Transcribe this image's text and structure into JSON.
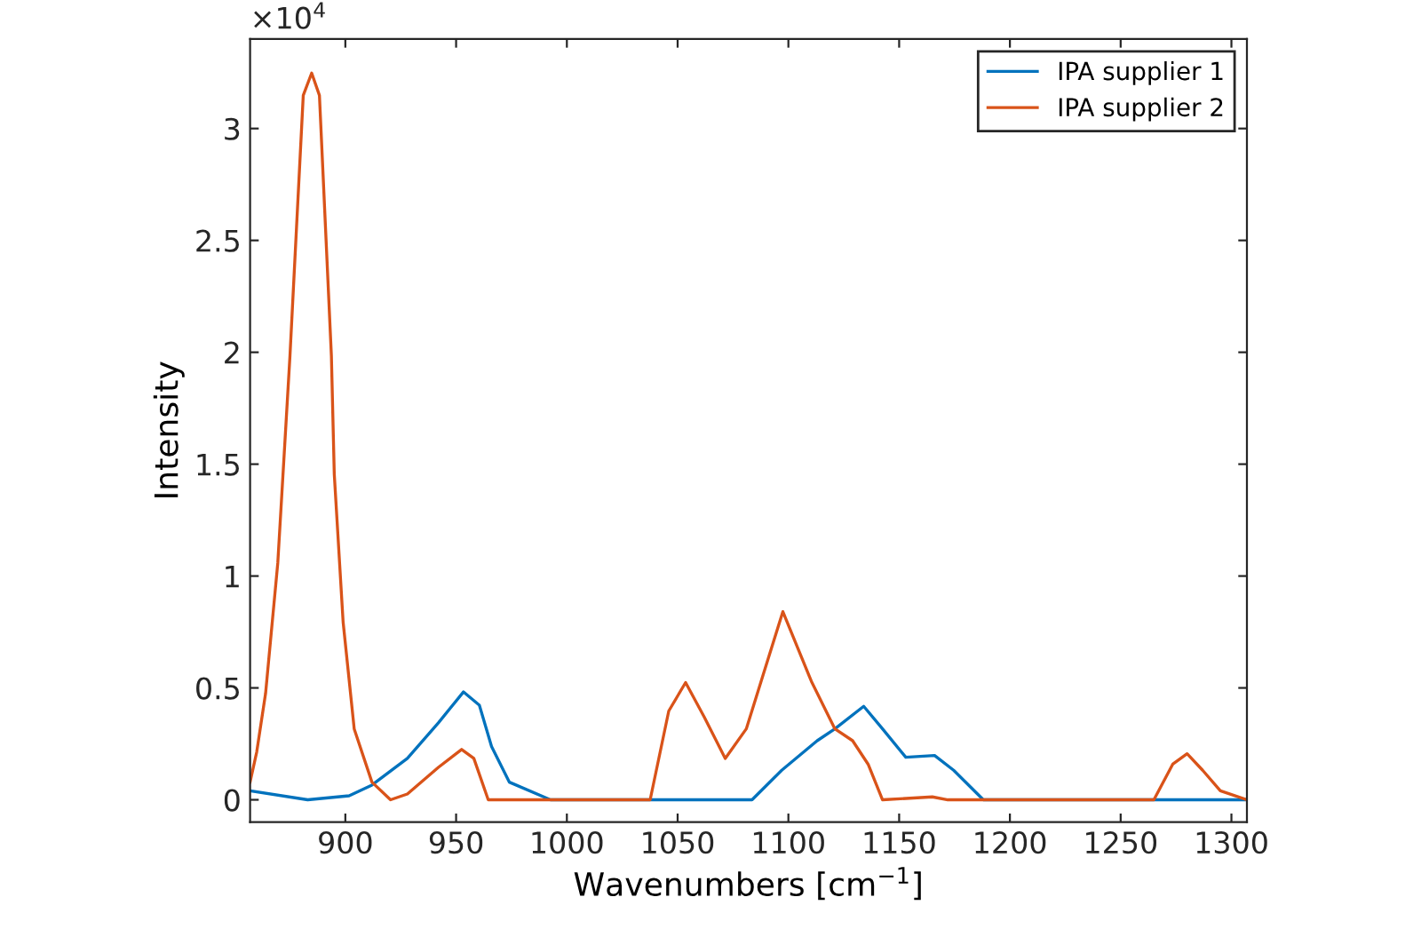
{
  "chart_data": {
    "type": "line",
    "xlabel": "Wavenumbers [cm$^{−1}$]",
    "ylabel": "Intensity",
    "annotations": [
      "×10$^{4}$"
    ],
    "xlim": [
      857,
      1307
    ],
    "ylim": [
      -0.1,
      3.4
    ],
    "xticks": [
      900,
      950,
      1000,
      1050,
      1100,
      1150,
      1200,
      1250,
      1300
    ],
    "yticks": [
      0,
      0.5,
      1,
      1.5,
      2,
      2.5,
      3
    ],
    "grid": false,
    "legend": "top right",
    "line_style": "solid",
    "marker": "none",
    "series": [
      {
        "name": "IPA supplier 1",
        "color": "#0072bd",
        "x": [
          857,
          883,
          901.7,
          912,
          928,
          942,
          953.3,
          960.5,
          966,
          974,
          992.6,
          1083.6,
          1097,
          1113,
          1121,
          1134,
          1142.5,
          1153,
          1166,
          1174.6,
          1188,
          1307
        ],
        "values": [
          0.04,
          0,
          0.018,
          0.066,
          0.185,
          0.344,
          0.482,
          0.423,
          0.238,
          0.079,
          0,
          0,
          0.132,
          0.264,
          0.317,
          0.418,
          0.317,
          0.19,
          0.198,
          0.132,
          0,
          0
        ]
      },
      {
        "name": "IPA supplier 2",
        "color": "#d95319",
        "x": [
          857,
          860,
          864,
          869.5,
          875,
          881,
          884.8,
          888.3,
          893.7,
          895,
          899,
          904,
          912,
          920.4,
          928,
          942,
          952.5,
          958,
          964.5,
          1037.6,
          1046,
          1053.6,
          1062,
          1071.5,
          1081,
          1097.5,
          1110.4,
          1121,
          1129,
          1136,
          1142.5,
          1165,
          1172,
          1265,
          1273.5,
          1280,
          1287,
          1295,
          1307
        ],
        "values": [
          0.079,
          0.214,
          0.476,
          1.058,
          1.984,
          3.148,
          3.248,
          3.148,
          1.984,
          1.455,
          0.794,
          0.317,
          0.079,
          0,
          0.026,
          0.145,
          0.225,
          0.185,
          0,
          0,
          0.397,
          0.524,
          0.37,
          0.185,
          0.317,
          0.841,
          0.529,
          0.317,
          0.264,
          0.159,
          0,
          0.013,
          0,
          0,
          0.159,
          0.206,
          0.132,
          0.04,
          0
        ]
      }
    ]
  }
}
